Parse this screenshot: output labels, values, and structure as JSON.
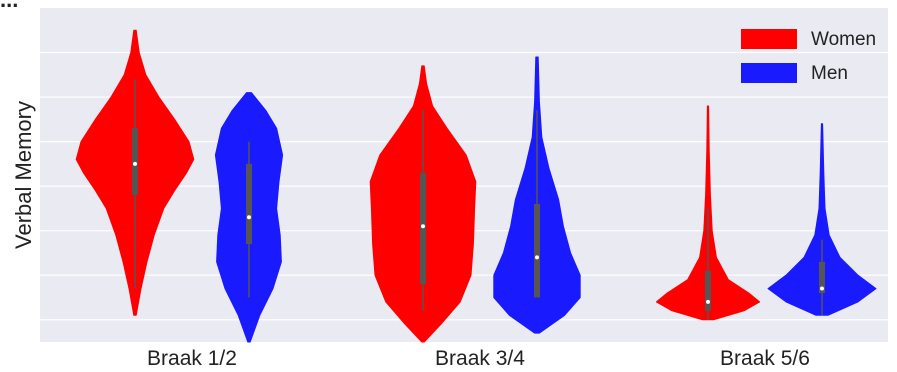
{
  "title_fragment": "...",
  "chart_data": {
    "type": "violin",
    "title": "",
    "ylabel": "Verbal Memory",
    "xlabel": "",
    "categories": [
      "Braak 1/2",
      "Braak 3/4",
      "Braak 5/6"
    ],
    "grid": true,
    "legend_position": "top-right",
    "ylim": [
      0,
      7.5
    ],
    "colors": {
      "Women": "#ff0000",
      "Men": "#1a1aff",
      "background": "#eaeaf2",
      "grid": "#ffffff",
      "box": "#555555"
    },
    "series": [
      {
        "name": "Women",
        "violins": [
          {
            "category": "Braak 1/2",
            "min": 0.6,
            "max": 7.0,
            "q1": 3.3,
            "median": 4.0,
            "q3": 4.8,
            "whisker_low": 1.2,
            "whisker_high": 5.9,
            "profile": [
              [
                0.6,
                0.02
              ],
              [
                1.2,
                0.1
              ],
              [
                1.8,
                0.2
              ],
              [
                2.4,
                0.32
              ],
              [
                3.0,
                0.48
              ],
              [
                3.4,
                0.66
              ],
              [
                3.8,
                0.86
              ],
              [
                4.1,
                0.98
              ],
              [
                4.5,
                0.9
              ],
              [
                5.0,
                0.66
              ],
              [
                5.5,
                0.4
              ],
              [
                6.0,
                0.18
              ],
              [
                6.5,
                0.07
              ],
              [
                7.0,
                0.02
              ]
            ]
          },
          {
            "category": "Braak 3/4",
            "min": 0.0,
            "max": 6.2,
            "q1": 1.3,
            "median": 2.6,
            "q3": 3.8,
            "whisker_low": 0.7,
            "whisker_high": 5.2,
            "profile": [
              [
                0.0,
                0.02
              ],
              [
                0.4,
                0.3
              ],
              [
                0.9,
                0.62
              ],
              [
                1.5,
                0.8
              ],
              [
                2.2,
                0.84
              ],
              [
                3.0,
                0.86
              ],
              [
                3.6,
                0.88
              ],
              [
                4.2,
                0.72
              ],
              [
                4.8,
                0.4
              ],
              [
                5.3,
                0.16
              ],
              [
                5.8,
                0.06
              ],
              [
                6.2,
                0.02
              ]
            ]
          },
          {
            "category": "Braak 5/6",
            "min": 0.5,
            "max": 5.3,
            "q1": 0.7,
            "median": 0.9,
            "q3": 1.6,
            "whisker_low": 0.5,
            "whisker_high": 3.0,
            "profile": [
              [
                0.5,
                0.1
              ],
              [
                0.7,
                0.6
              ],
              [
                0.9,
                0.86
              ],
              [
                1.1,
                0.68
              ],
              [
                1.4,
                0.34
              ],
              [
                1.9,
                0.14
              ],
              [
                2.5,
                0.07
              ],
              [
                3.3,
                0.04
              ],
              [
                4.3,
                0.02
              ],
              [
                5.3,
                0.01
              ]
            ]
          }
        ]
      },
      {
        "name": "Men",
        "violins": [
          {
            "category": "Braak 1/2",
            "min": 0.0,
            "max": 5.6,
            "q1": 2.2,
            "median": 2.8,
            "q3": 4.0,
            "whisker_low": 1.0,
            "whisker_high": 4.5,
            "profile": [
              [
                0.0,
                0.02
              ],
              [
                0.6,
                0.18
              ],
              [
                1.2,
                0.4
              ],
              [
                1.8,
                0.54
              ],
              [
                2.4,
                0.52
              ],
              [
                3.0,
                0.46
              ],
              [
                3.6,
                0.5
              ],
              [
                4.2,
                0.56
              ],
              [
                4.8,
                0.46
              ],
              [
                5.2,
                0.28
              ],
              [
                5.6,
                0.04
              ]
            ]
          },
          {
            "category": "Braak 3/4",
            "min": 0.2,
            "max": 6.4,
            "q1": 1.0,
            "median": 1.9,
            "q3": 3.1,
            "whisker_low": 1.0,
            "whisker_high": 5.2,
            "profile": [
              [
                0.2,
                0.04
              ],
              [
                0.6,
                0.46
              ],
              [
                1.0,
                0.72
              ],
              [
                1.5,
                0.72
              ],
              [
                2.0,
                0.56
              ],
              [
                2.6,
                0.44
              ],
              [
                3.2,
                0.36
              ],
              [
                3.9,
                0.2
              ],
              [
                4.6,
                0.08
              ],
              [
                5.4,
                0.04
              ],
              [
                6.4,
                0.02
              ]
            ]
          },
          {
            "category": "Braak 5/6",
            "min": 0.6,
            "max": 4.9,
            "q1": 1.1,
            "median": 1.2,
            "q3": 1.8,
            "whisker_low": 0.6,
            "whisker_high": 2.3,
            "profile": [
              [
                0.6,
                0.1
              ],
              [
                0.9,
                0.6
              ],
              [
                1.2,
                0.9
              ],
              [
                1.5,
                0.6
              ],
              [
                1.9,
                0.3
              ],
              [
                2.4,
                0.12
              ],
              [
                3.0,
                0.05
              ],
              [
                3.8,
                0.03
              ],
              [
                4.9,
                0.01
              ]
            ]
          }
        ]
      }
    ]
  }
}
